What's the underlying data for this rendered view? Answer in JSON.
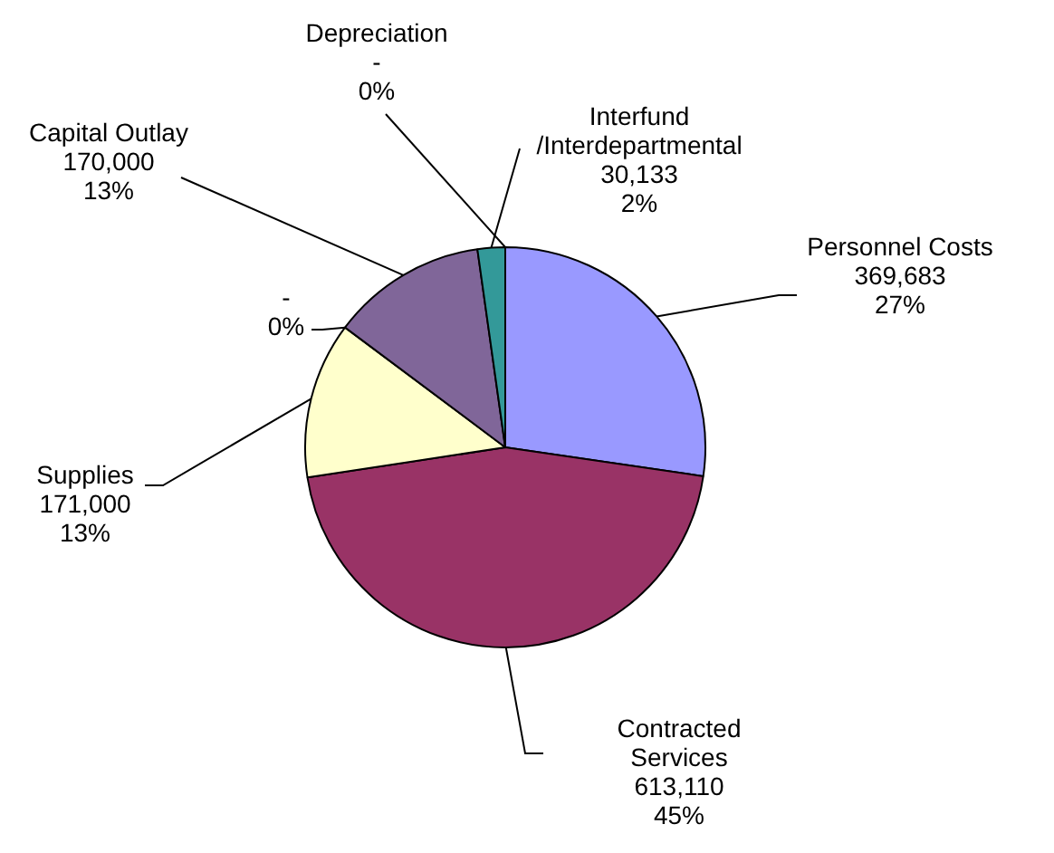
{
  "chart_data": {
    "type": "pie",
    "categories": [
      "Personnel Costs",
      "Contracted Services",
      "Supplies",
      null,
      "Capital Outlay",
      "Interfund /Interdepartmental",
      "Depreciation"
    ],
    "values": [
      369683,
      613110,
      171000,
      0,
      170000,
      30133,
      0
    ],
    "value_labels": [
      "369,683\n27%",
      "613,110\n45%",
      "171,000\n13%",
      "-\n0%",
      "170,000\n13%",
      "30,133\n2%",
      "-\n0%"
    ],
    "colors": [
      "#9999ff",
      "#993366",
      "#ffffcc",
      "#ccffff",
      "#806699",
      "#339999",
      "#ff8080"
    ],
    "legend": false
  }
}
